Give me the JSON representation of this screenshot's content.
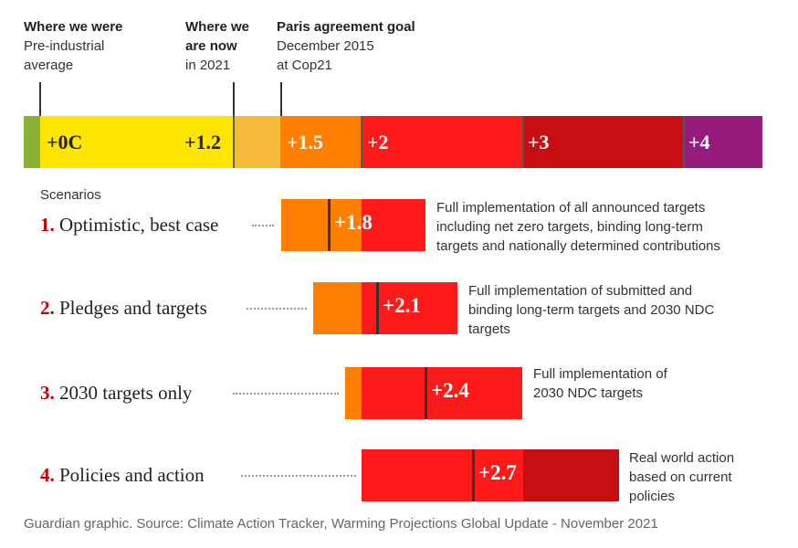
{
  "headers": [
    {
      "bold": "Where we were",
      "lines": [
        "Pre-industrial",
        "average"
      ]
    },
    {
      "bold_lines": [
        "Where we",
        "are now"
      ],
      "lines": [
        "in 2021"
      ]
    },
    {
      "bold": "Paris agreement goal",
      "lines": [
        "December 2015",
        "at Cop21"
      ]
    }
  ],
  "scale_labels": [
    "+0C",
    "+1.2",
    "+1.5",
    "+2",
    "+3",
    "+4"
  ],
  "colors": {
    "green": "#8ab135",
    "yellow": "#ffe500",
    "amber": "#f5bb38",
    "orange": "#ff7f00",
    "red": "#ff1a1a",
    "darkred": "#c70f12",
    "purple": "#951c7c",
    "scenario_num": "#c70000"
  },
  "scenarios_heading": "Scenarios",
  "scenarios": [
    {
      "num": "1.",
      "name": "Optimistic, best case",
      "value": "+1.8",
      "desc": [
        "Full implementation of all announced targets",
        "including net zero targets, binding long-term",
        "targets and nationally determined contributions"
      ]
    },
    {
      "num": "2.",
      "name": "Pledges and targets",
      "value": "+2.1",
      "desc": [
        "Full implementation of submitted and",
        "binding long-term targets and 2030 NDC",
        "targets"
      ]
    },
    {
      "num": "3.",
      "name": "2030 targets only",
      "value": "+2.4",
      "desc": [
        "Full implementation of",
        "2030 NDC targets"
      ]
    },
    {
      "num": "4.",
      "name": "Policies and action",
      "value": "+2.7",
      "desc": [
        "Real world action",
        "based on current",
        "policies"
      ]
    }
  ],
  "footer": "Guardian graphic. Source: Climate Action Tracker, Warming Projections Global Update - November 2021"
}
